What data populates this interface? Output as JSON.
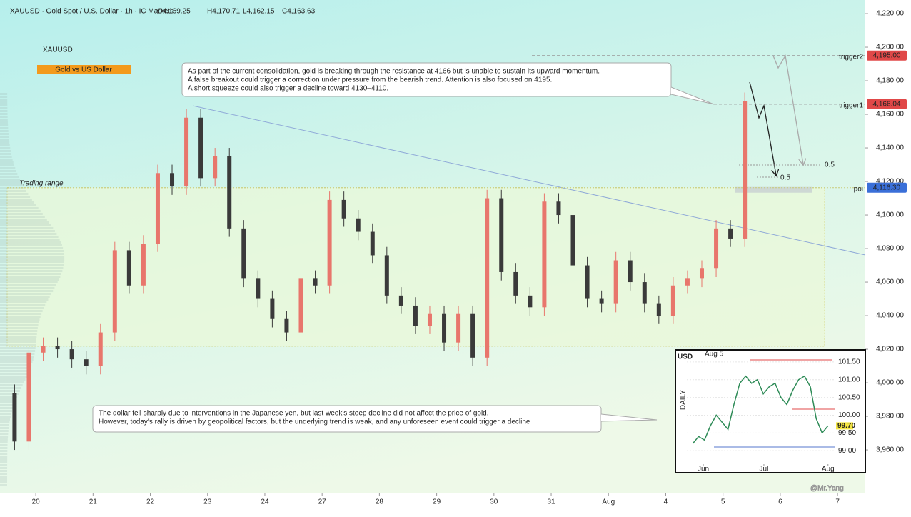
{
  "header": {
    "symbol": "XAUUSD · Gold Spot / U.S. Dollar · 1h · IC Markets",
    "ohlc": [
      "O4,169.25",
      "H4,170.71",
      "L4,162.15",
      "C4,163.63"
    ],
    "watermark": "@Mr.Yang"
  },
  "chart_data": [
    {
      "type": "candlestick",
      "title": "XAUUSD",
      "subtitle": "Gold vs US Dollar",
      "up_color": "#e8766c",
      "down_color": "#3a3a3a",
      "x": [
        -0.37,
        -0.12,
        0.13,
        0.38,
        0.63,
        0.88,
        1.13,
        1.38,
        1.63,
        1.88,
        2.13,
        2.38,
        2.63,
        2.88,
        3.13,
        3.38,
        3.63,
        3.88,
        4.13,
        4.38,
        4.63,
        4.88,
        5.13,
        5.38,
        5.63,
        5.88,
        6.13,
        6.38,
        6.63,
        6.88,
        7.13,
        7.38,
        7.63,
        7.88,
        8.13,
        8.38,
        8.63,
        8.88,
        9.13,
        9.38,
        9.63,
        9.88,
        10.13,
        10.38,
        10.63,
        10.88,
        11.13,
        11.38,
        11.63,
        11.88,
        12.13,
        12.38
      ],
      "open": [
        3994,
        3965,
        4018,
        4022,
        4020,
        4014,
        4010,
        4030,
        4079,
        4058,
        4083,
        4125,
        4117,
        4158,
        4122,
        4135,
        4092,
        4062,
        4050,
        4038,
        4030,
        4062,
        4058,
        4109,
        4098,
        4090,
        4076,
        4052,
        4046,
        4034,
        4041,
        4024,
        4041,
        4015,
        4110,
        4066,
        4052,
        4045,
        4108,
        4100,
        4070,
        4050,
        4047,
        4073,
        4060,
        4047,
        4040,
        4058,
        4062,
        4068,
        4092,
        4086
      ],
      "high": [
        3999,
        4023,
        4027,
        4027,
        4025,
        4019,
        4035,
        4084,
        4084,
        4088,
        4130,
        4130,
        4163,
        4163,
        4140,
        4140,
        4097,
        4067,
        4055,
        4043,
        4067,
        4067,
        4114,
        4114,
        4103,
        4095,
        4081,
        4057,
        4051,
        4046,
        4046,
        4046,
        4046,
        4115,
        4115,
        4071,
        4057,
        4113,
        4113,
        4105,
        4075,
        4055,
        4078,
        4078,
        4065,
        4052,
        4063,
        4067,
        4073,
        4097,
        4097,
        4173
      ],
      "low": [
        3960,
        3960,
        4013,
        4015,
        4009,
        4005,
        4005,
        4025,
        4053,
        4053,
        4078,
        4112,
        4112,
        4117,
        4117,
        4087,
        4057,
        4045,
        4033,
        4025,
        4025,
        4053,
        4053,
        4093,
        4085,
        4071,
        4047,
        4041,
        4029,
        4029,
        4019,
        4019,
        4010,
        4010,
        4061,
        4047,
        4040,
        4040,
        4095,
        4065,
        4045,
        4042,
        4042,
        4055,
        4042,
        4035,
        4035,
        4053,
        4057,
        4063,
        4081,
        4081
      ],
      "close": [
        3965,
        4018,
        4022,
        4020,
        4014,
        4010,
        4030,
        4079,
        4058,
        4083,
        4125,
        4117,
        4158,
        4122,
        4135,
        4092,
        4062,
        4050,
        4038,
        4030,
        4062,
        4058,
        4109,
        4098,
        4090,
        4076,
        4052,
        4046,
        4034,
        4041,
        4024,
        4041,
        4015,
        4110,
        4066,
        4052,
        4045,
        4108,
        4100,
        4070,
        4050,
        4047,
        4073,
        4060,
        4047,
        4040,
        4058,
        4062,
        4068,
        4092,
        4086,
        4168
      ],
      "xlim": [
        -0.5,
        14.46
      ],
      "ylim": [
        3934.5,
        4228.1
      ],
      "xticks": [
        {
          "value": 0,
          "label": "20"
        },
        {
          "value": 1,
          "label": "21"
        },
        {
          "value": 2,
          "label": "22"
        },
        {
          "value": 3,
          "label": "23"
        },
        {
          "value": 4,
          "label": "24"
        },
        {
          "value": 5,
          "label": "27"
        },
        {
          "value": 6,
          "label": "28"
        },
        {
          "value": 7,
          "label": "29"
        },
        {
          "value": 8,
          "label": "30"
        },
        {
          "value": 9,
          "label": "31"
        },
        {
          "value": 10,
          "label": "Aug"
        },
        {
          "value": 11,
          "label": "4"
        },
        {
          "value": 12,
          "label": "5"
        },
        {
          "value": 13,
          "label": "6"
        },
        {
          "value": 14,
          "label": "7"
        }
      ],
      "yticks": [
        {
          "value": 4220,
          "label": "4,220.00"
        },
        {
          "value": 4200,
          "label": "4,200.00"
        },
        {
          "value": 4180,
          "label": "4,180.00"
        },
        {
          "value": 4160,
          "label": "4,160.00"
        },
        {
          "value": 4140,
          "label": "4,140.00"
        },
        {
          "value": 4120,
          "label": "4,120.00"
        },
        {
          "value": 4100,
          "label": "4,100.00"
        },
        {
          "value": 4080,
          "label": "4,080.00"
        },
        {
          "value": 4060,
          "label": "4,060.00"
        },
        {
          "value": 4040,
          "label": "4,040.00"
        },
        {
          "value": 4020,
          "label": "4,020.00"
        },
        {
          "value": 4000,
          "label": "4,000.00"
        },
        {
          "value": 3980,
          "label": "3,980.00"
        },
        {
          "value": 3960,
          "label": "3,960.00"
        }
      ],
      "levels": [
        {
          "name": "trigger2",
          "value": 4195,
          "label": "4,195.00",
          "color": "#e04848"
        },
        {
          "name": "trigger1",
          "value": 4166.04,
          "label": "4,166.04",
          "color": "#e04848"
        },
        {
          "name": "poi",
          "value": 4116.3,
          "label": "4,116.30",
          "color": "#3a6fd8"
        }
      ],
      "range_label": "Trading range",
      "fib_labels": [
        "0.5",
        "0.5"
      ],
      "annotations": [
        [
          "As part of the current consolidation, gold is breaking through the resistance at 4166 but is unable to sustain its upward momentum.",
          "A false breakout could trigger a correction under pressure from the bearish trend. Attention is also focused on 4195.",
          "A short squeeze could also trigger a decline toward 4130–4110."
        ],
        [
          "The dollar fell sharply due to interventions in the Japanese yen, but last week's steep decline did not affect the price of gold.",
          "However, today's rally is driven by geopolitical factors, but the underlying trend is weak, and any unforeseen event could trigger a decline"
        ]
      ]
    },
    {
      "type": "line",
      "title": "USD",
      "subtitle": "Aug 5",
      "axis_label": "DAILY",
      "color": "#2e8b57",
      "x": [
        0,
        1,
        2,
        3,
        4,
        5,
        6,
        7,
        8,
        9,
        10,
        11,
        12,
        13,
        14,
        15,
        16,
        17,
        18,
        19,
        20,
        21,
        22,
        23
      ],
      "values": [
        99.2,
        99.4,
        99.3,
        99.7,
        100.0,
        99.8,
        99.6,
        100.3,
        100.9,
        101.1,
        100.9,
        101.0,
        100.6,
        100.8,
        100.9,
        100.5,
        100.3,
        100.7,
        101.0,
        101.1,
        100.8,
        99.9,
        99.5,
        99.7
      ],
      "xlim": [
        -1,
        24
      ],
      "ylim": [
        98.4,
        101.84
      ],
      "xticks": [
        {
          "value": 1.8,
          "label": "Jun"
        },
        {
          "value": 12.1,
          "label": "Jul"
        },
        {
          "value": 23,
          "label": "Aug"
        }
      ],
      "yticks": [
        {
          "value": 101.5,
          "label": "101.50"
        },
        {
          "value": 101,
          "label": "101.00"
        },
        {
          "value": 100.5,
          "label": "100.50"
        },
        {
          "value": 100,
          "label": "100.00"
        },
        {
          "value": 99.5,
          "label": "99.50"
        },
        {
          "value": 99,
          "label": "99.00"
        }
      ],
      "last": {
        "value": 99.7,
        "label": "99.70"
      }
    }
  ]
}
